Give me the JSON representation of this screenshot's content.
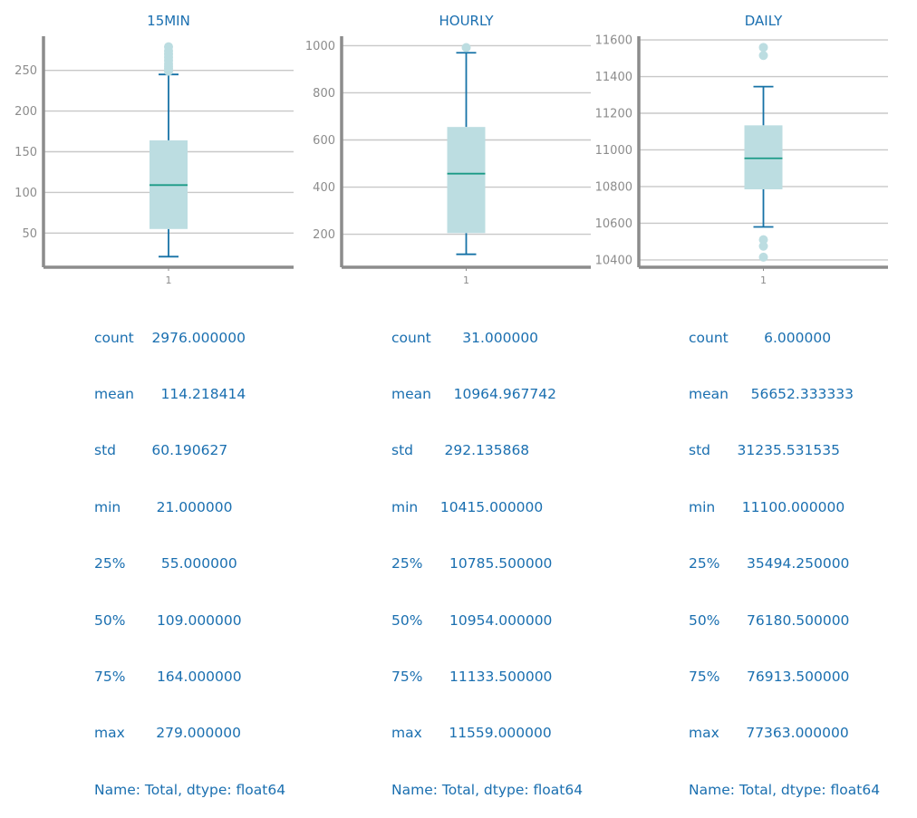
{
  "colors": {
    "title": "#1a6fb0",
    "text": "#1a6fb0",
    "axis": "#8c8c8c",
    "grid": "#c8c8c8",
    "box_fill": "#bcdde1",
    "whisker": "#1672a6",
    "median": "#1a9a86",
    "flier": "#bcdde1"
  },
  "chart_data": [
    {
      "type": "box",
      "title": "15MIN",
      "categories": [
        "1"
      ],
      "ylim": [
        8,
        292
      ],
      "yticks": [
        50,
        100,
        150,
        200,
        250
      ],
      "grid": true,
      "box": {
        "whisker_low": 21,
        "q1": 55,
        "median": 109,
        "q3": 164,
        "whisker_high": 245
      },
      "fliers": [
        249,
        252,
        255,
        258,
        262,
        266,
        270,
        274,
        279
      ]
    },
    {
      "type": "box",
      "title": "HOURLY",
      "categories": [
        "1"
      ],
      "ylim": [
        60,
        1040
      ],
      "yticks": [
        200,
        400,
        600,
        800,
        1000
      ],
      "grid": true,
      "box": {
        "whisker_low": 115,
        "q1": 205,
        "median": 457,
        "q3": 655,
        "whisker_high": 970
      },
      "fliers": [
        992
      ]
    },
    {
      "type": "box",
      "title": "DAILY",
      "categories": [
        "1"
      ],
      "ylim": [
        10360,
        11620
      ],
      "yticks": [
        10400,
        10600,
        10800,
        11000,
        11200,
        11400,
        11600
      ],
      "grid": true,
      "box": {
        "whisker_low": 10580,
        "q1": 10785,
        "median": 10954,
        "q3": 11134,
        "whisker_high": 11345
      },
      "fliers": [
        10415,
        10475,
        10510,
        11515,
        11559
      ]
    }
  ],
  "stats": [
    {
      "lines": [
        "count    2976.000000",
        "mean      114.218414",
        "std        60.190627",
        "min        21.000000",
        "25%        55.000000",
        "50%       109.000000",
        "75%       164.000000",
        "max       279.000000",
        "Name: Total, dtype: float64"
      ]
    },
    {
      "lines": [
        "count       31.000000",
        "mean     10964.967742",
        "std       292.135868",
        "min     10415.000000",
        "25%      10785.500000",
        "50%      10954.000000",
        "75%      11133.500000",
        "max      11559.000000",
        "Name: Total, dtype: float64"
      ]
    },
    {
      "lines": [
        "count        6.000000",
        "mean     56652.333333",
        "std      31235.531535",
        "min      11100.000000",
        "25%      35494.250000",
        "50%      76180.500000",
        "75%      76913.500000",
        "max      77363.000000",
        "Name: Total, dtype: float64"
      ]
    }
  ]
}
